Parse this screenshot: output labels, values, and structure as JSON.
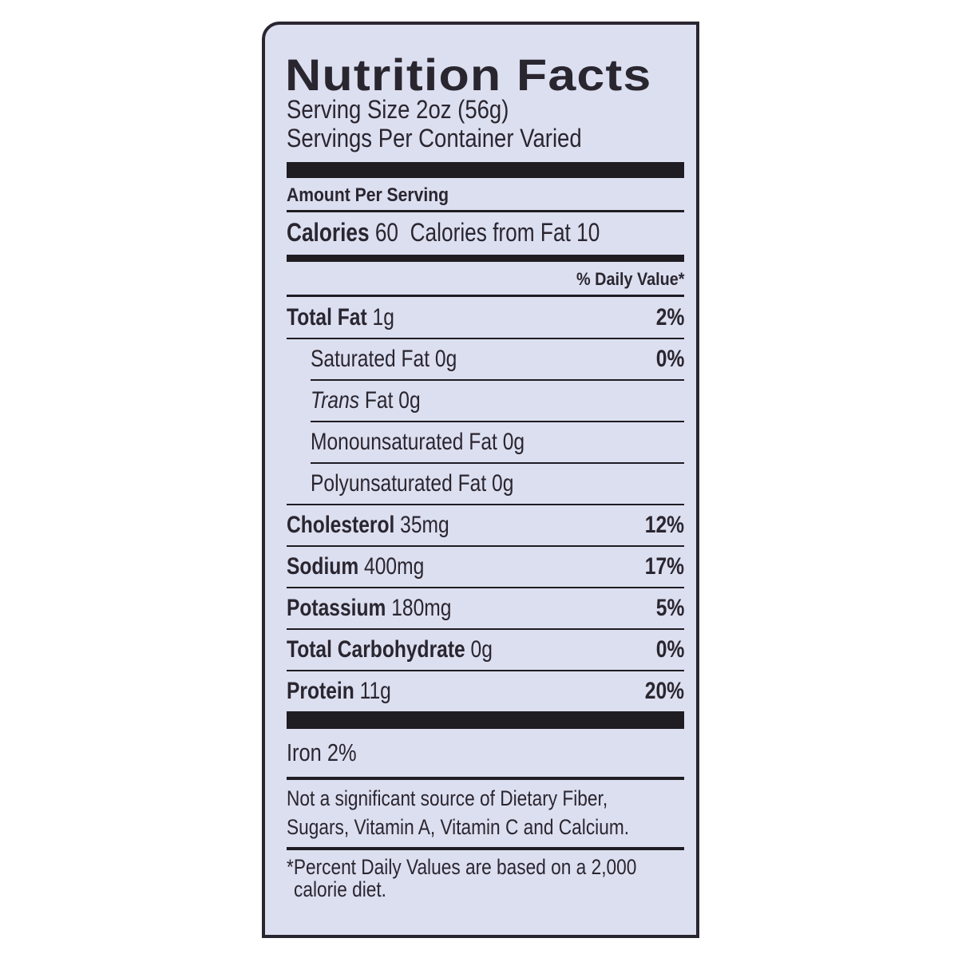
{
  "title": "Nutrition Facts",
  "serving_size": "Serving Size 2oz (56g)",
  "servings_per_container": "Servings Per Container Varied",
  "amount_per_serving": "Amount Per Serving",
  "calories": {
    "label": "Calories",
    "value": "60",
    "from_fat": "Calories from Fat 10"
  },
  "daily_value_header": "% Daily Value*",
  "nutrients": [
    {
      "label": "Total Fat",
      "amount": "1g",
      "dv": "2%"
    },
    {
      "label": "Saturated Fat",
      "amount": "0g",
      "dv": "0%"
    },
    {
      "label": "Trans",
      "suffix": "Fat",
      "amount": "0g",
      "dv": ""
    },
    {
      "label": "Monounsaturated Fat",
      "amount": "0g",
      "dv": ""
    },
    {
      "label": "Polyunsaturated Fat",
      "amount": "0g",
      "dv": ""
    },
    {
      "label": "Cholesterol",
      "amount": "35mg",
      "dv": "12%"
    },
    {
      "label": "Sodium",
      "amount": "400mg",
      "dv": "17%"
    },
    {
      "label": "Potassium",
      "amount": "180mg",
      "dv": "5%"
    },
    {
      "label": "Total Carbohydrate",
      "amount": "0g",
      "dv": "0%"
    },
    {
      "label": "Protein",
      "amount": "11g",
      "dv": "20%"
    }
  ],
  "vitamins": "Iron 2%",
  "not_significant": [
    "Not a significant source of Dietary Fiber,",
    "Sugars, Vitamin A, Vitamin C and Calcium."
  ],
  "footnote": [
    "*Percent Daily Values are based on a 2,000",
    "calorie diet."
  ],
  "colors": {
    "background": "#dcdff0",
    "ink": "#2a2630"
  }
}
